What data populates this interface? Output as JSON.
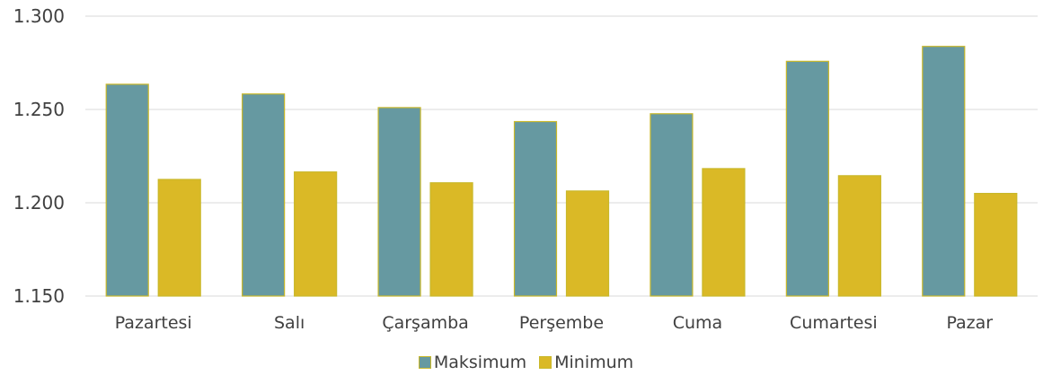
{
  "chart_data": {
    "type": "bar",
    "categories": [
      "Pazartesi",
      "Salı",
      "Çarşamba",
      "Perşembe",
      "Cuma",
      "Cumartesi",
      "Pazar"
    ],
    "series": [
      {
        "name": "Maksimum",
        "color": "#6699a1",
        "values": [
          1.2635,
          1.2583,
          1.251,
          1.2435,
          1.2477,
          1.2758,
          1.2838
        ]
      },
      {
        "name": "Minimum",
        "color": "#dab926",
        "values": [
          1.2125,
          1.2165,
          1.2107,
          1.2063,
          1.2183,
          1.2145,
          1.205
        ]
      }
    ],
    "ylim": [
      1.15,
      1.3
    ],
    "yticks": [
      "1.150",
      "1.200",
      "1.250",
      "1.300"
    ],
    "grid": true,
    "legend": "bottom",
    "title": "",
    "xlabel": "",
    "ylabel": ""
  }
}
